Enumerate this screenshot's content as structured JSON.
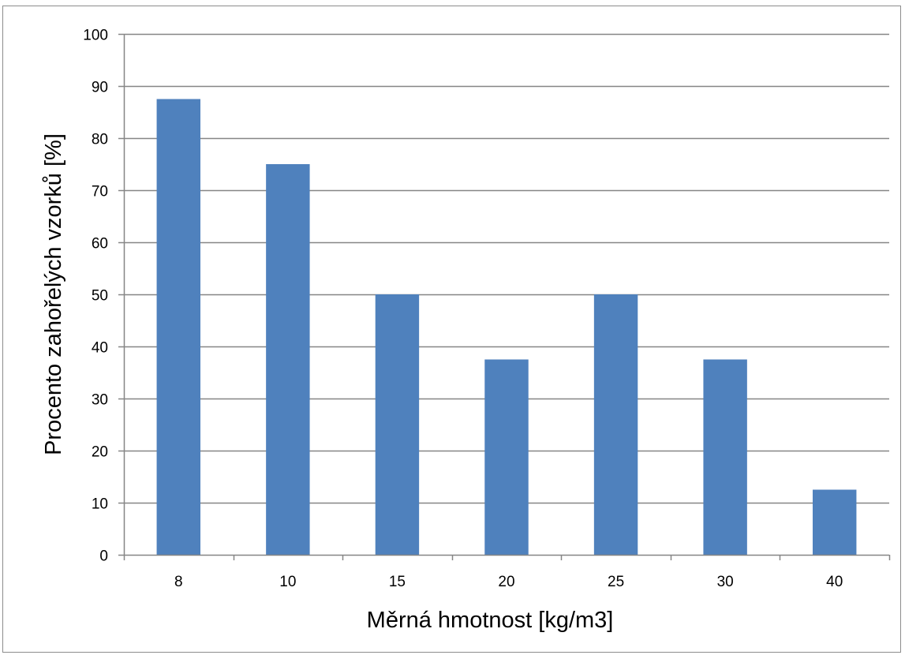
{
  "chart_data": {
    "type": "bar",
    "title": "",
    "xlabel": "Měrná hmotnost [kg/m3]",
    "ylabel": "Procento zahořelých vzorků [%]",
    "categories": [
      "8",
      "10",
      "15",
      "20",
      "25",
      "30",
      "40"
    ],
    "values": [
      87.5,
      75,
      50,
      37.5,
      50,
      37.5,
      12.5
    ],
    "ylim": [
      0,
      100
    ],
    "yticks": [
      "0",
      "10",
      "20",
      "30",
      "40",
      "50",
      "60",
      "70",
      "80",
      "90",
      "100"
    ],
    "grid": true,
    "legend": "none",
    "bar_color": "#4f81bd",
    "grid_color": "#868686"
  }
}
